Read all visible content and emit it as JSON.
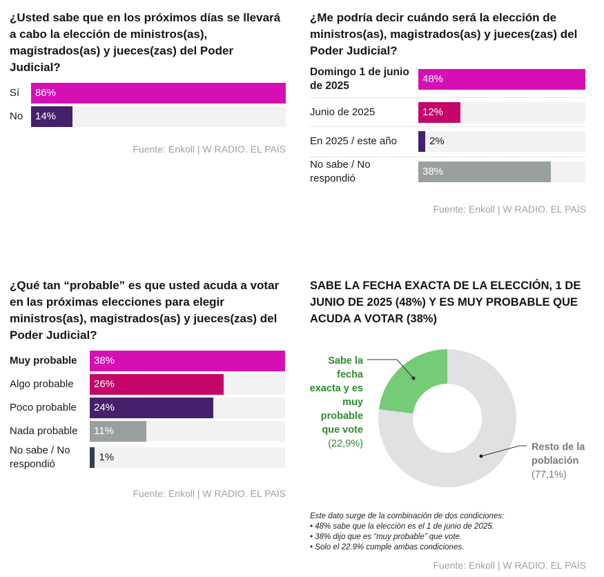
{
  "colors": {
    "magenta": "#d60fb4",
    "crimson": "#c60568",
    "purple": "#45206b",
    "gray": "#9aa0a0",
    "slate": "#333f4f",
    "track": "#f2f2f2",
    "green": "#76cc76",
    "green_text": "#2e8b2e",
    "donut_rest": "#dfe1e2",
    "rest_text": "#777c80"
  },
  "chart_data": [
    {
      "type": "bar",
      "orientation": "horizontal",
      "title": "¿Usted sabe que en los próximos días se llevará a cabo la elección de ministros(as), magistrados(as) y jueces(zas) del Poder Judicial?",
      "categories": [
        "Sí",
        "No"
      ],
      "values": [
        86,
        14
      ],
      "value_labels": [
        "86%",
        "14%"
      ],
      "bar_colors": [
        "magenta",
        "purple"
      ],
      "bold_categories": [],
      "source": "Fuente: Enkoll | W RADIO. EL PAÍS"
    },
    {
      "type": "bar",
      "orientation": "horizontal",
      "title": "¿Me podría decir cuándo será la elección de ministros(as), magistrados(as) y jueces(zas) del Poder Judicial?",
      "categories": [
        "Domingo 1 de junio de 2025",
        "Junio de 2025",
        "En 2025 / este año",
        "No sabe / No respondió"
      ],
      "values": [
        48,
        12,
        2,
        38
      ],
      "value_labels": [
        "48%",
        "12%",
        "2%",
        "38%"
      ],
      "bar_colors": [
        "magenta",
        "crimson",
        "purple",
        "gray"
      ],
      "bold_categories": [
        0
      ],
      "source": "Fuente: Enkoll | W RADIO. EL PAÍS"
    },
    {
      "type": "bar",
      "orientation": "horizontal",
      "title": "¿Qué tan “probable” es que usted acuda a votar en las próximas elecciones para elegir ministros(as), magistrados(as) y jueces(zas) del Poder Judicial?",
      "categories": [
        "Muy probable",
        "Algo probable",
        "Poco probable",
        "Nada probable",
        "No sabe / No respondió"
      ],
      "values": [
        38,
        26,
        24,
        11,
        1
      ],
      "value_labels": [
        "38%",
        "26%",
        "24%",
        "11%",
        "1%"
      ],
      "bar_colors": [
        "magenta",
        "crimson",
        "purple",
        "gray",
        "slate"
      ],
      "bold_categories": [
        0
      ],
      "source": "Fuente: Enkoll | W RADIO. EL PAÍS"
    },
    {
      "type": "pie",
      "variant": "donut",
      "title": "SABE LA FECHA EXACTA DE LA ELECCIÓN, 1 DE JUNIO DE 2025 (48%) Y ES MUY PROBABLE QUE ACUDA A VOTAR (38%)",
      "slices": [
        {
          "label": "Sabe la fecha exacta y es muy probable que vote",
          "value": 22.9,
          "value_label": "(22,9%)",
          "color": "green"
        },
        {
          "label": "Resto de la población",
          "value": 77.1,
          "value_label": "(77,1%)",
          "color": "donut_rest"
        }
      ],
      "note": {
        "intro": "Este dato surge de la combinación de dos condiciones:",
        "bullets": [
          "• 48% sabe que la elección es el 1 de junio de 2025.",
          "• 38% dijo que es “muy probable” que vote.",
          "• Solo el 22.9% cumple ambas condiciones."
        ]
      },
      "source": "Fuente: Enkoll | W RADIO. EL PAÍS"
    }
  ]
}
